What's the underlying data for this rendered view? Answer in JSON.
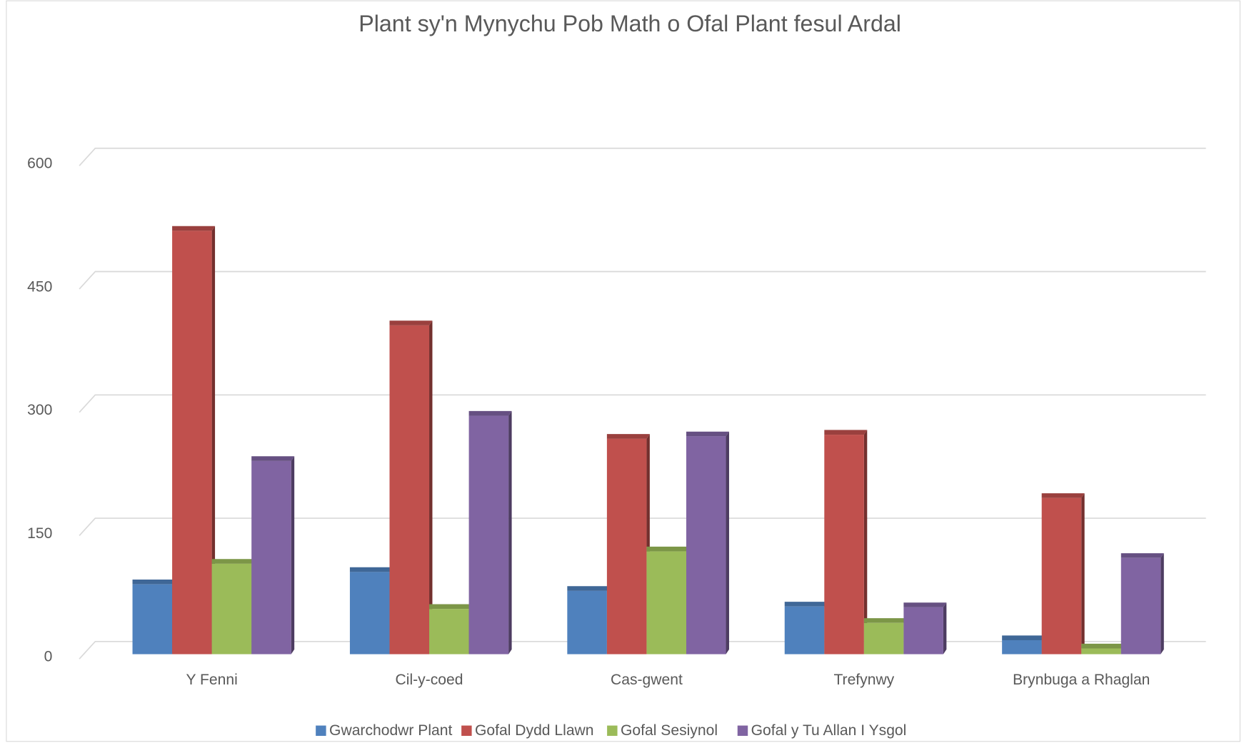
{
  "chart_data": {
    "type": "bar3d",
    "title": "Plant sy'n Mynychu Pob Math o Ofal Plant fesul Ardal",
    "categories": [
      "Y Fenni",
      "Cil-y-coed",
      "Cas-gwent",
      "Trefynwy",
      "Brynbuga a Rhaglan"
    ],
    "series": [
      {
        "name": "Gwarchodwr Plant",
        "color": "#4f81bd",
        "values": [
          85,
          100,
          77,
          58,
          17
        ]
      },
      {
        "name": "Gofal Dydd Llawn",
        "color": "#c0504d",
        "values": [
          515,
          400,
          262,
          267,
          190
        ]
      },
      {
        "name": "Gofal Sesiynol",
        "color": "#9bbb59",
        "values": [
          110,
          55,
          125,
          38,
          7
        ]
      },
      {
        "name": "Gofal y Tu Allan I Ysgol",
        "color": "#8064a2",
        "values": [
          235,
          290,
          265,
          57,
          117
        ]
      }
    ],
    "ylim": [
      0,
      600
    ],
    "yticks": [
      0,
      150,
      300,
      450,
      600
    ],
    "grid": true,
    "legend": "bottom"
  }
}
